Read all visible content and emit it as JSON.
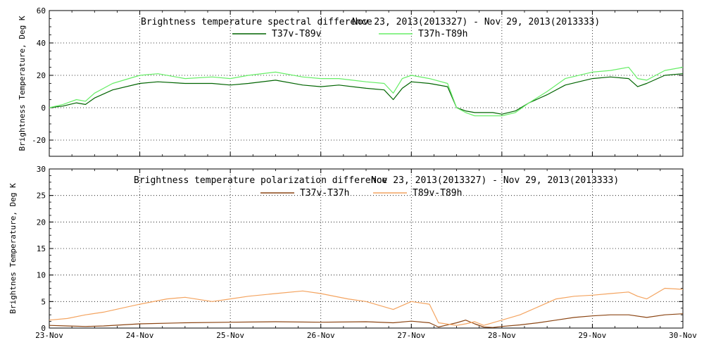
{
  "chart_data": [
    {
      "type": "line",
      "title": "Brightness temperature spectral difference",
      "date_range": "Nov 23, 2013(2013327) - Nov 29, 2013(2013333)",
      "ylabel": "Brightness Temperature, Deg K",
      "xlabel": "",
      "xlim": [
        0,
        7
      ],
      "ylim": [
        -30,
        60
      ],
      "yticks": [
        -20,
        0,
        20,
        40,
        60
      ],
      "grid": true,
      "legend_position": "top-center",
      "series": [
        {
          "name": "T37v-T89v",
          "color": "#006400",
          "x": [
            0,
            0.15,
            0.3,
            0.4,
            0.5,
            0.7,
            1,
            1.2,
            1.5,
            1.8,
            2,
            2.2,
            2.5,
            2.8,
            3,
            3.2,
            3.5,
            3.7,
            3.8,
            3.9,
            4,
            4.2,
            4.4,
            4.5,
            4.6,
            4.7,
            4.9,
            5,
            5.15,
            5.3,
            5.5,
            5.7,
            6,
            6.2,
            6.4,
            6.5,
            6.6,
            6.8,
            7
          ],
          "values": [
            0,
            1,
            3,
            2,
            6,
            11,
            15,
            16,
            15,
            15,
            14,
            15,
            17,
            14,
            13,
            14,
            12,
            11,
            5,
            12,
            16,
            15,
            13,
            0,
            -2,
            -3,
            -3,
            -4,
            -2,
            3,
            8,
            14,
            18,
            19,
            18,
            13,
            15,
            20,
            21
          ]
        },
        {
          "name": "T37h-T89h",
          "color": "#66ee66",
          "x": [
            0,
            0.15,
            0.3,
            0.4,
            0.5,
            0.7,
            1,
            1.2,
            1.5,
            1.8,
            2,
            2.2,
            2.5,
            2.8,
            3,
            3.2,
            3.5,
            3.7,
            3.8,
            3.9,
            4,
            4.2,
            4.4,
            4.5,
            4.6,
            4.7,
            4.9,
            5,
            5.15,
            5.3,
            5.5,
            5.7,
            6,
            6.2,
            6.4,
            6.5,
            6.6,
            6.8,
            7
          ],
          "values": [
            0,
            2,
            5,
            4,
            9,
            15,
            20,
            21,
            18,
            19,
            18,
            20,
            22,
            19,
            18,
            18,
            16,
            15,
            9,
            18,
            20,
            18,
            15,
            0,
            -3,
            -5,
            -5,
            -5,
            -3,
            3,
            10,
            18,
            22,
            23,
            25,
            18,
            17,
            23,
            25
          ]
        }
      ]
    },
    {
      "type": "line",
      "title": "Brightness temperature polarization difference",
      "date_range": "Nov 23, 2013(2013327) - Nov 29, 2013(2013333)",
      "ylabel": "Brightnes Temperature, Deg K",
      "xlabel": "",
      "xlim": [
        0,
        7
      ],
      "ylim": [
        0,
        30
      ],
      "yticks": [
        0,
        5,
        10,
        15,
        20,
        25,
        30
      ],
      "xticks": [
        "23-Nov",
        "24-Nov",
        "25-Nov",
        "26-Nov",
        "27-Nov",
        "28-Nov",
        "29-Nov",
        "30-Nov"
      ],
      "grid": true,
      "legend_position": "top-center",
      "series": [
        {
          "name": "T37v-T37h",
          "color": "#8b4513",
          "x": [
            0,
            0.2,
            0.4,
            0.6,
            1,
            1.5,
            2,
            2.5,
            3,
            3.5,
            3.8,
            4,
            4.2,
            4.3,
            4.5,
            4.6,
            4.7,
            4.8,
            4.9,
            5,
            5.2,
            5.4,
            5.6,
            5.8,
            6,
            6.2,
            6.4,
            6.6,
            6.8,
            7
          ],
          "values": [
            0.5,
            0.4,
            0.3,
            0.4,
            0.8,
            1.0,
            1.1,
            1.2,
            1.1,
            1.2,
            1.0,
            1.3,
            1.0,
            0.2,
            1.0,
            1.5,
            0.8,
            0.2,
            0.1,
            0.3,
            0.6,
            1.0,
            1.5,
            2.0,
            2.3,
            2.5,
            2.5,
            2.0,
            2.5,
            2.7
          ]
        },
        {
          "name": "T89v-T89h",
          "color": "#f4a460",
          "x": [
            0,
            0.2,
            0.4,
            0.6,
            1,
            1.3,
            1.5,
            1.8,
            2,
            2.2,
            2.5,
            2.8,
            3,
            3.3,
            3.5,
            3.6,
            3.8,
            4,
            4.2,
            4.3,
            4.5,
            4.6,
            4.7,
            4.8,
            5,
            5.2,
            5.4,
            5.6,
            5.8,
            6,
            6.2,
            6.4,
            6.5,
            6.6,
            6.8,
            7
          ],
          "values": [
            1.5,
            1.8,
            2.5,
            3.0,
            4.5,
            5.5,
            5.8,
            5.0,
            5.5,
            6.0,
            6.5,
            7.0,
            6.5,
            5.5,
            5.0,
            4.5,
            3.5,
            5.0,
            4.5,
            1.0,
            0.5,
            0.8,
            1.2,
            0.5,
            1.5,
            2.5,
            4.0,
            5.5,
            6.0,
            6.2,
            6.5,
            6.8,
            6.0,
            5.5,
            7.5,
            7.3
          ]
        }
      ]
    }
  ]
}
